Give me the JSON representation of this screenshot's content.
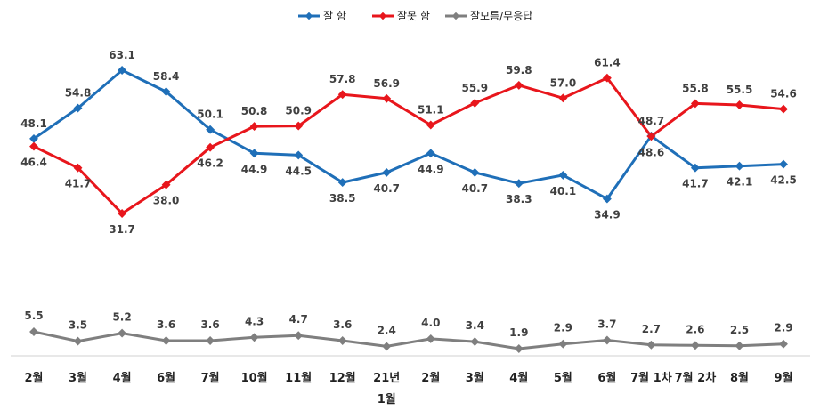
{
  "chart_data": {
    "type": "line",
    "categories": [
      "2월",
      "3월",
      "4월",
      "6월",
      "7월",
      "10월",
      "11월",
      "12월",
      "21년\n1월",
      "2월",
      "3월",
      "4월",
      "5월",
      "6월",
      "7월 1차",
      "7월 2차",
      "8월",
      "9월"
    ],
    "series": [
      {
        "name": "잘 함",
        "color": "#1F6FB8",
        "values": [
          48.1,
          54.8,
          63.1,
          58.4,
          50.1,
          44.9,
          44.5,
          38.5,
          40.7,
          44.9,
          40.7,
          38.3,
          40.1,
          34.9,
          48.7,
          41.7,
          42.1,
          42.5
        ]
      },
      {
        "name": "잘못 함",
        "color": "#E8161C",
        "values": [
          46.4,
          41.7,
          31.7,
          38.0,
          46.2,
          50.8,
          50.9,
          57.8,
          56.9,
          51.1,
          55.9,
          59.8,
          57.0,
          61.4,
          48.6,
          55.8,
          55.5,
          54.6
        ]
      },
      {
        "name": "잘모름/무응답",
        "color": "#7F7F7F",
        "values": [
          5.5,
          3.5,
          5.2,
          3.6,
          3.6,
          4.3,
          4.7,
          3.6,
          2.4,
          4.0,
          3.4,
          1.9,
          2.9,
          3.7,
          2.7,
          2.6,
          2.5,
          2.9
        ]
      }
    ],
    "legend_position": "top-center",
    "grid": false
  }
}
